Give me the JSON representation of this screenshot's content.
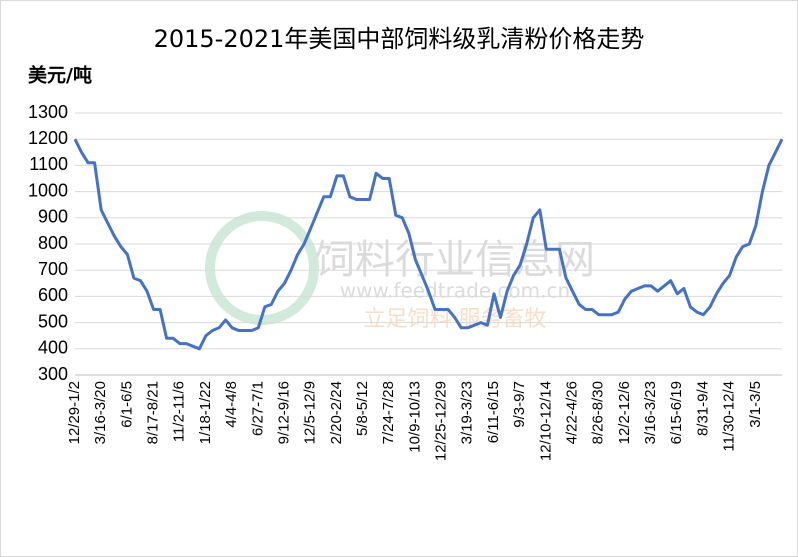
{
  "chart_data": {
    "type": "line",
    "title": "2015-2021年美国中部饲料级乳清粉价格走势",
    "y_label": "美元/吨",
    "watermark": {
      "name": "饲料行业信息网",
      "url": "www.feedtrade.com.cn",
      "slogan": "立足饲料 服务畜牧"
    },
    "color": "#4472c4",
    "grid": true,
    "ylim": [
      300,
      1300
    ],
    "yticks": [
      300,
      400,
      500,
      600,
      700,
      800,
      900,
      1000,
      1100,
      1200,
      1300
    ],
    "categories": [
      "12/29-1/2",
      null,
      null,
      null,
      "3/16-3/20",
      null,
      null,
      null,
      "6/1-6/5",
      null,
      null,
      null,
      "8/17-8/21",
      null,
      null,
      null,
      "11/2-11/6",
      null,
      null,
      null,
      "1/18-1/22",
      null,
      null,
      null,
      "4/4-4/8",
      null,
      null,
      null,
      "6/27-7/1",
      null,
      null,
      null,
      "9/12-9/16",
      null,
      null,
      null,
      "12/5-12/9",
      null,
      null,
      null,
      "2/20-2/24",
      null,
      null,
      null,
      "5/8-5/12",
      null,
      null,
      null,
      "7/24-7/28",
      null,
      null,
      null,
      "10/9-10/13",
      null,
      null,
      null,
      "12/25-12/29",
      null,
      null,
      null,
      "3/19-3/23",
      null,
      null,
      null,
      "6/11-6/15",
      null,
      null,
      null,
      "9/3-9/7",
      null,
      null,
      null,
      "12/10-12/14",
      null,
      null,
      null,
      "4/22-4/26",
      null,
      null,
      null,
      "8/26-8/30",
      null,
      null,
      null,
      "12/2-12/6",
      null,
      null,
      null,
      "3/16-3/23",
      null,
      null,
      null,
      "6/15-6/19",
      null,
      null,
      null,
      "8/31-9/4",
      null,
      null,
      null,
      "11/30-12/4",
      null,
      null,
      null,
      "3/1-3/5",
      null,
      null,
      null,
      null
    ],
    "values": [
      1200,
      1150,
      1110,
      1110,
      930,
      880,
      830,
      790,
      760,
      670,
      660,
      620,
      550,
      550,
      440,
      440,
      420,
      420,
      410,
      400,
      450,
      470,
      480,
      510,
      480,
      470,
      470,
      470,
      480,
      560,
      570,
      620,
      650,
      700,
      760,
      800,
      860,
      920,
      980,
      980,
      1060,
      1060,
      980,
      970,
      970,
      970,
      1070,
      1050,
      1050,
      910,
      900,
      840,
      740,
      680,
      620,
      550,
      550,
      550,
      520,
      480,
      480,
      490,
      500,
      490,
      610,
      520,
      620,
      680,
      720,
      800,
      900,
      930,
      780,
      780,
      780,
      670,
      620,
      570,
      550,
      550,
      530,
      530,
      530,
      540,
      590,
      620,
      630,
      640,
      640,
      620,
      640,
      660,
      610,
      630,
      560,
      540,
      530,
      560,
      610,
      650,
      680,
      750,
      790,
      800,
      870,
      1000,
      1100,
      1150,
      1200
    ]
  }
}
